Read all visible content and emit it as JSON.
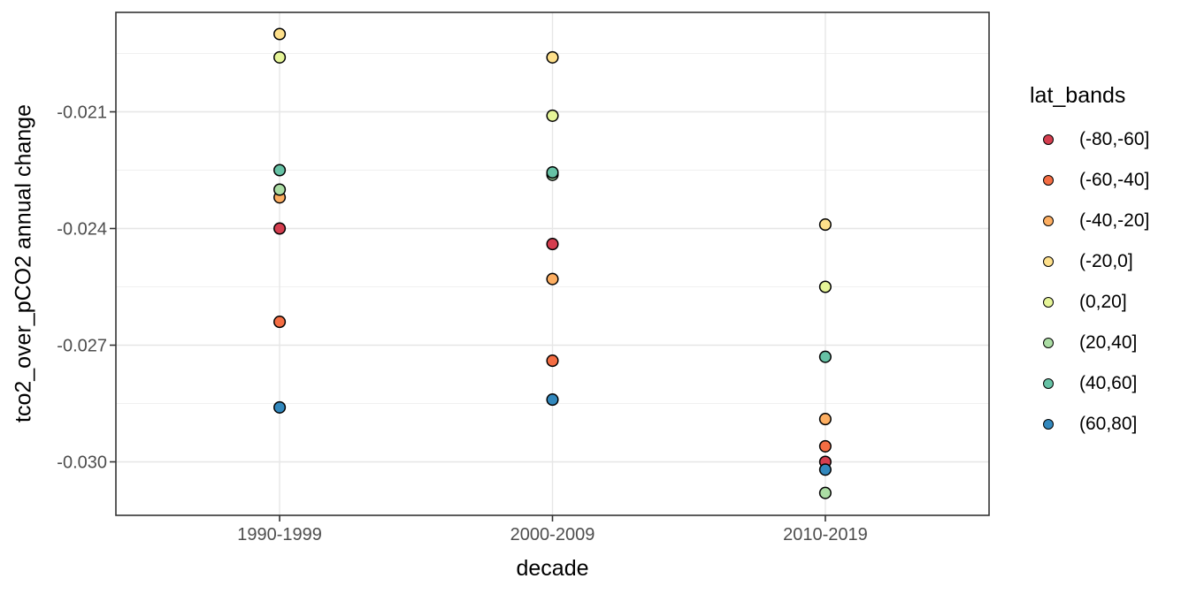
{
  "chart_data": {
    "type": "scatter",
    "xlabel": "decade",
    "ylabel": "tco2_over_pCO2 annual change",
    "categories": [
      "1990-1999",
      "2000-2009",
      "2010-2019"
    ],
    "series": [
      {
        "name": "(-80,-60]",
        "color": "#d53e4f",
        "values": [
          -0.024,
          -0.0244,
          -0.03
        ]
      },
      {
        "name": "(-60,-40]",
        "color": "#f46d43",
        "values": [
          -0.0264,
          -0.0274,
          -0.0296
        ]
      },
      {
        "name": "(-40,-20]",
        "color": "#fdae61",
        "values": [
          -0.0232,
          -0.0253,
          -0.0289
        ]
      },
      {
        "name": "(-20,0]",
        "color": "#fee08b",
        "values": [
          -0.019,
          -0.0196,
          -0.0239
        ]
      },
      {
        "name": "(0,20]",
        "color": "#e6f598",
        "values": [
          -0.0196,
          -0.0211,
          -0.0255
        ]
      },
      {
        "name": "(20,40]",
        "color": "#abdda4",
        "values": [
          -0.023,
          -0.02262,
          -0.0308
        ]
      },
      {
        "name": "(40,60]",
        "color": "#66c2a5",
        "values": [
          -0.0225,
          -0.02256,
          -0.0273
        ]
      },
      {
        "name": "(60,80]",
        "color": "#3288bd",
        "values": [
          -0.0286,
          -0.0284,
          -0.0302
        ]
      }
    ],
    "y_ticks": {
      "major": [
        -0.021,
        -0.024,
        -0.027,
        -0.03
      ],
      "major_labels": [
        "-0.021",
        "-0.024",
        "-0.027",
        "-0.030"
      ],
      "minor": [
        -0.0195,
        -0.0225,
        -0.0255,
        -0.0285
      ]
    },
    "ylim": [
      -0.031375,
      -0.018443
    ],
    "grid": "major+minor horizontal, major vertical",
    "legend": {
      "title": "lat_bands",
      "position": "right"
    },
    "colors": {
      "panel_border": "#333333",
      "major_grid": "#e6e6e6",
      "minor_grid": "#f0f0f0",
      "tick_mark": "#333333",
      "tick_label": "#4d4d4d",
      "point_stroke": "#000000"
    }
  }
}
